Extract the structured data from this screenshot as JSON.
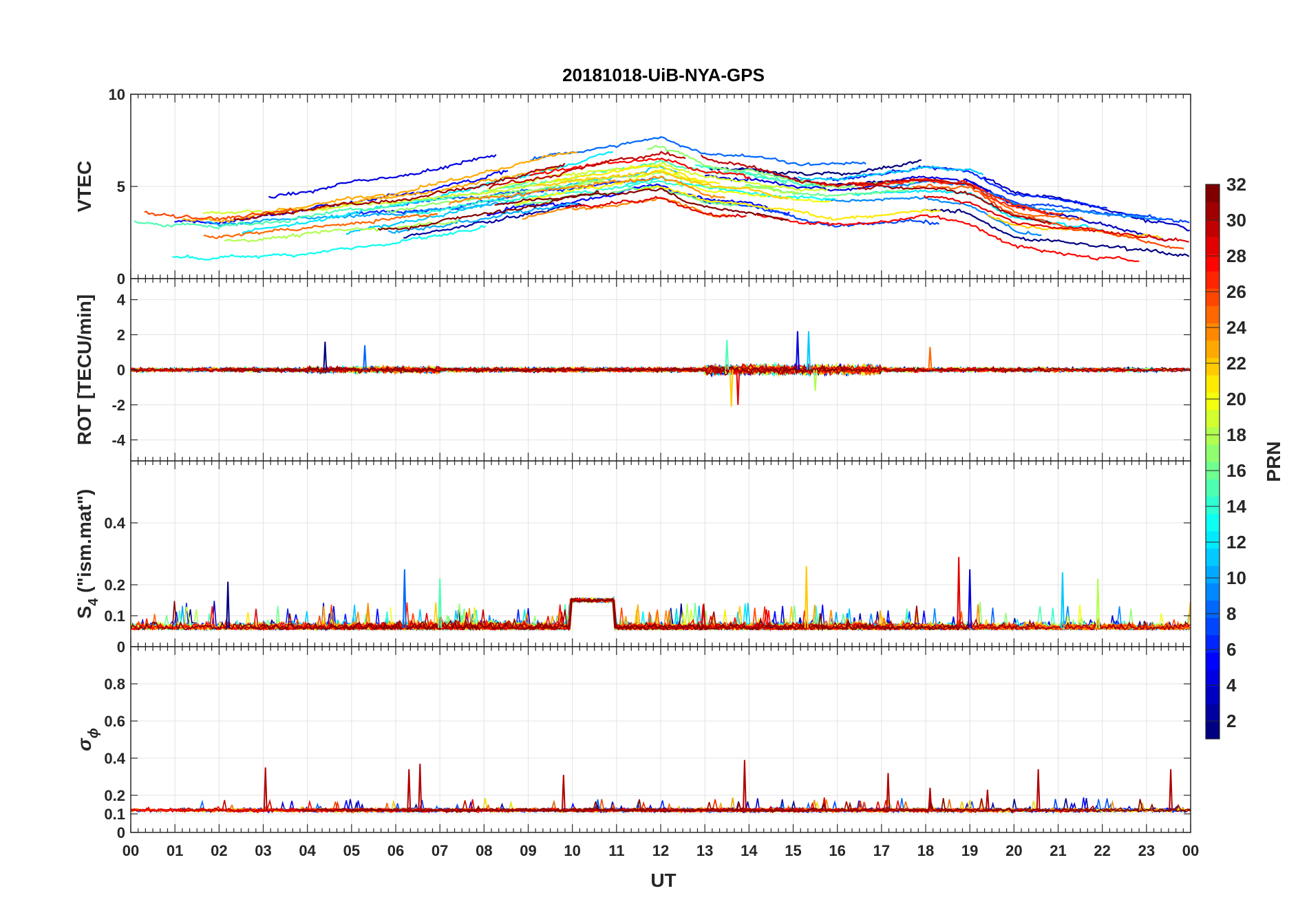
{
  "chart_data": {
    "type": "line",
    "title": "20181018-UiB-NYA-GPS",
    "xlabel": "UT",
    "x_ticks": [
      "00",
      "01",
      "02",
      "03",
      "04",
      "05",
      "06",
      "07",
      "08",
      "09",
      "10",
      "11",
      "12",
      "13",
      "14",
      "15",
      "16",
      "17",
      "18",
      "19",
      "20",
      "21",
      "22",
      "23",
      "00"
    ],
    "xlim": [
      0,
      24
    ],
    "panels": [
      {
        "id": "vtec",
        "ylabel": "VTEC",
        "ylim": [
          0,
          10
        ],
        "y_ticks": [
          0,
          5,
          10
        ],
        "y_tick_labels": [
          "0",
          "5",
          "10"
        ],
        "series_profile": {
          "description": "diurnal VTEC per PRN",
          "hours": [
            0,
            2,
            4,
            6,
            8,
            10,
            12,
            13,
            14,
            15,
            16,
            18,
            19,
            20,
            22,
            24
          ],
          "vtec": [
            2.6,
            2.4,
            3.0,
            3.6,
            4.4,
            5.3,
            6.0,
            5.2,
            5.0,
            4.6,
            4.4,
            4.8,
            4.6,
            3.4,
            2.8,
            2.0
          ]
        }
      },
      {
        "id": "rot",
        "ylabel": "ROT [TECU/min]",
        "ylim": [
          -5.2,
          5.2
        ],
        "y_ticks": [
          -4,
          -2,
          0,
          2,
          4
        ],
        "y_tick_labels": [
          "-4",
          "-2",
          "0",
          "2",
          "4"
        ],
        "spikes": [
          {
            "t": 4.4,
            "value": 1.6
          },
          {
            "t": 5.3,
            "value": 1.4
          },
          {
            "t": 13.5,
            "value": 1.7
          },
          {
            "t": 13.6,
            "value": -2.1
          },
          {
            "t": 13.75,
            "value": -2.0
          },
          {
            "t": 15.1,
            "value": 2.2
          },
          {
            "t": 15.35,
            "value": 2.2
          },
          {
            "t": 15.5,
            "value": -1.2
          },
          {
            "t": 18.1,
            "value": 1.3
          }
        ]
      },
      {
        "id": "s4",
        "ylabel_main": "S",
        "ylabel_sub": "4",
        "ylabel_rest": " (\"ism.mat\")",
        "ylim": [
          0,
          0.6
        ],
        "y_ticks": [
          0,
          0.1,
          0.2,
          0.4
        ],
        "y_tick_labels": [
          "0",
          "0.1",
          "0.2",
          "0.4"
        ],
        "plateau": {
          "t_start": 9.95,
          "t_end": 10.95,
          "value": 0.15
        },
        "spikes": [
          {
            "t": 2.2,
            "value": 0.21
          },
          {
            "t": 6.2,
            "value": 0.25
          },
          {
            "t": 7.0,
            "value": 0.22
          },
          {
            "t": 15.3,
            "value": 0.26
          },
          {
            "t": 18.75,
            "value": 0.29
          },
          {
            "t": 19.0,
            "value": 0.25
          },
          {
            "t": 21.1,
            "value": 0.24
          },
          {
            "t": 21.9,
            "value": 0.22
          }
        ]
      },
      {
        "id": "sigma_phi",
        "ylabel_main": "σ",
        "ylabel_sub": "ϕ",
        "ylim": [
          0,
          1.0
        ],
        "y_ticks": [
          0,
          0.1,
          0.2,
          0.4,
          0.6,
          0.8
        ],
        "y_tick_labels": [
          "0",
          "0.1",
          "0.2",
          "0.4",
          "0.6",
          "0.8"
        ],
        "spikes": [
          {
            "t": 3.05,
            "value": 0.35
          },
          {
            "t": 6.55,
            "value": 0.37
          },
          {
            "t": 6.3,
            "value": 0.34
          },
          {
            "t": 9.8,
            "value": 0.31
          },
          {
            "t": 13.9,
            "value": 0.39
          },
          {
            "t": 17.15,
            "value": 0.32
          },
          {
            "t": 18.1,
            "value": 0.24
          },
          {
            "t": 19.4,
            "value": 0.23
          },
          {
            "t": 20.55,
            "value": 0.34
          },
          {
            "t": 23.55,
            "value": 0.34
          }
        ]
      }
    ],
    "colorbar": {
      "label": "PRN",
      "range": [
        1,
        32
      ],
      "ticks": [
        2,
        4,
        6,
        8,
        10,
        12,
        14,
        16,
        18,
        20,
        22,
        24,
        26,
        28,
        30,
        32
      ],
      "colormap": "jet"
    },
    "prn_list": [
      1,
      2,
      3,
      4,
      5,
      6,
      7,
      8,
      9,
      10,
      11,
      12,
      13,
      14,
      15,
      16,
      17,
      18,
      19,
      20,
      21,
      22,
      23,
      24,
      25,
      26,
      27,
      28,
      29,
      30,
      31,
      32
    ]
  }
}
